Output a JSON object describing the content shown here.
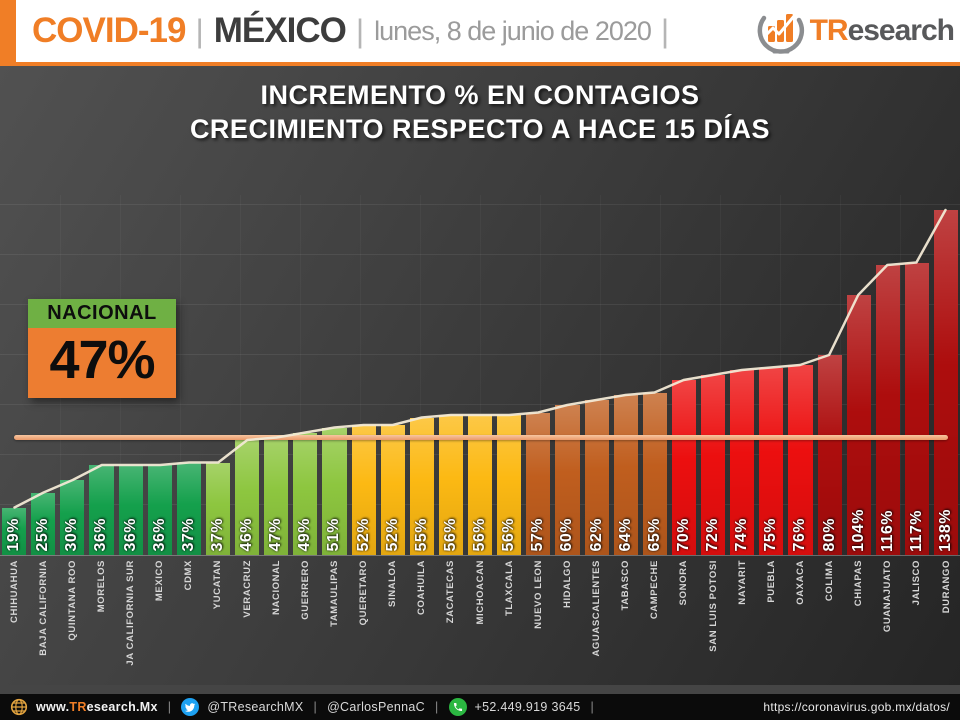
{
  "header": {
    "brand": "COVID-19",
    "country": "MÉXICO",
    "date": "lunes, 8 de junio de 2020",
    "separator": "|",
    "logo_tr": "TR",
    "logo_rest": "esearch",
    "accent_color": "#f07e26"
  },
  "title": {
    "line1": "INCREMENTO % EN CONTAGIOS",
    "line2": "CRECIMIENTO RESPECTO A HACE 15 DÍAS"
  },
  "national_callout": {
    "label": "NACIONAL",
    "value": "47%",
    "header_color": "#6fb044",
    "body_color": "#ed7d31"
  },
  "chart_data": {
    "type": "bar",
    "title": "INCREMENTO % EN CONTAGIOS — CRECIMIENTO RESPECTO A HACE 15 DÍAS",
    "value_suffix": "%",
    "ylim": [
      0,
      140
    ],
    "plot_max": 144,
    "gridline_step": 20,
    "ymax_gridline": 140,
    "gridlines": true,
    "national_average": 47,
    "average_line_color": "#f2a379",
    "trend_line_color": "#f2e9d5",
    "palette": {
      "dark_green": "#14a04c",
      "light_green": "#8dc63f",
      "yellow": "#fcb913",
      "orange": "#c05e1e",
      "red": "#ec0f0f",
      "dark_red": "#ad0d0d"
    },
    "bars": [
      {
        "name": "CHIHUAHUA",
        "value": 19,
        "group": "dark_green"
      },
      {
        "name": "BAJA CALIFORNIA",
        "value": 25,
        "group": "dark_green"
      },
      {
        "name": "QUINTANA ROO",
        "value": 30,
        "group": "dark_green"
      },
      {
        "name": "MORELOS",
        "value": 36,
        "group": "dark_green"
      },
      {
        "name": "BAJA CALIFORNIA SUR",
        "value": 36,
        "group": "dark_green"
      },
      {
        "name": "MEXICO",
        "value": 36,
        "group": "dark_green"
      },
      {
        "name": "CDMX",
        "value": 37,
        "group": "dark_green"
      },
      {
        "name": "YUCATAN",
        "value": 37,
        "group": "light_green"
      },
      {
        "name": "VERACRUZ",
        "value": 46,
        "group": "light_green"
      },
      {
        "name": "NACIONAL",
        "value": 47,
        "group": "light_green"
      },
      {
        "name": "GUERRERO",
        "value": 49,
        "group": "light_green"
      },
      {
        "name": "TAMAULIPAS",
        "value": 51,
        "group": "light_green"
      },
      {
        "name": "QUERETARO",
        "value": 52,
        "group": "yellow"
      },
      {
        "name": "SINALOA",
        "value": 52,
        "group": "yellow"
      },
      {
        "name": "COAHUILA",
        "value": 55,
        "group": "yellow"
      },
      {
        "name": "ZACATECAS",
        "value": 56,
        "group": "yellow"
      },
      {
        "name": "MICHOACAN",
        "value": 56,
        "group": "yellow"
      },
      {
        "name": "TLAXCALA",
        "value": 56,
        "group": "yellow"
      },
      {
        "name": "NUEVO LEON",
        "value": 57,
        "group": "orange"
      },
      {
        "name": "HIDALGO",
        "value": 60,
        "group": "orange"
      },
      {
        "name": "AGUASCALIENTES",
        "value": 62,
        "group": "orange"
      },
      {
        "name": "TABASCO",
        "value": 64,
        "group": "orange"
      },
      {
        "name": "CAMPECHE",
        "value": 65,
        "group": "orange"
      },
      {
        "name": "SONORA",
        "value": 70,
        "group": "red"
      },
      {
        "name": "SAN LUIS POTOSI",
        "value": 72,
        "group": "red"
      },
      {
        "name": "NAYARIT",
        "value": 74,
        "group": "red"
      },
      {
        "name": "PUEBLA",
        "value": 75,
        "group": "red"
      },
      {
        "name": "OAXACA",
        "value": 76,
        "group": "red"
      },
      {
        "name": "COLIMA",
        "value": 80,
        "group": "dark_red"
      },
      {
        "name": "CHIAPAS",
        "value": 104,
        "group": "dark_red"
      },
      {
        "name": "GUANAJUATO",
        "value": 116,
        "group": "dark_red"
      },
      {
        "name": "JALISCO",
        "value": 117,
        "group": "dark_red"
      },
      {
        "name": "DURANGO",
        "value": 138,
        "group": "dark_red"
      }
    ]
  },
  "footer": {
    "separator": "|",
    "website_prefix": "www.",
    "website_tr": "TR",
    "website_rest": "esearch.Mx",
    "twitter_handle_1": "@TResearchMX",
    "twitter_handle_2": "@CarlosPennaC",
    "phone": "+52.449.919 3645",
    "source_url": "https://coronavirus.gob.mx/datos/"
  }
}
